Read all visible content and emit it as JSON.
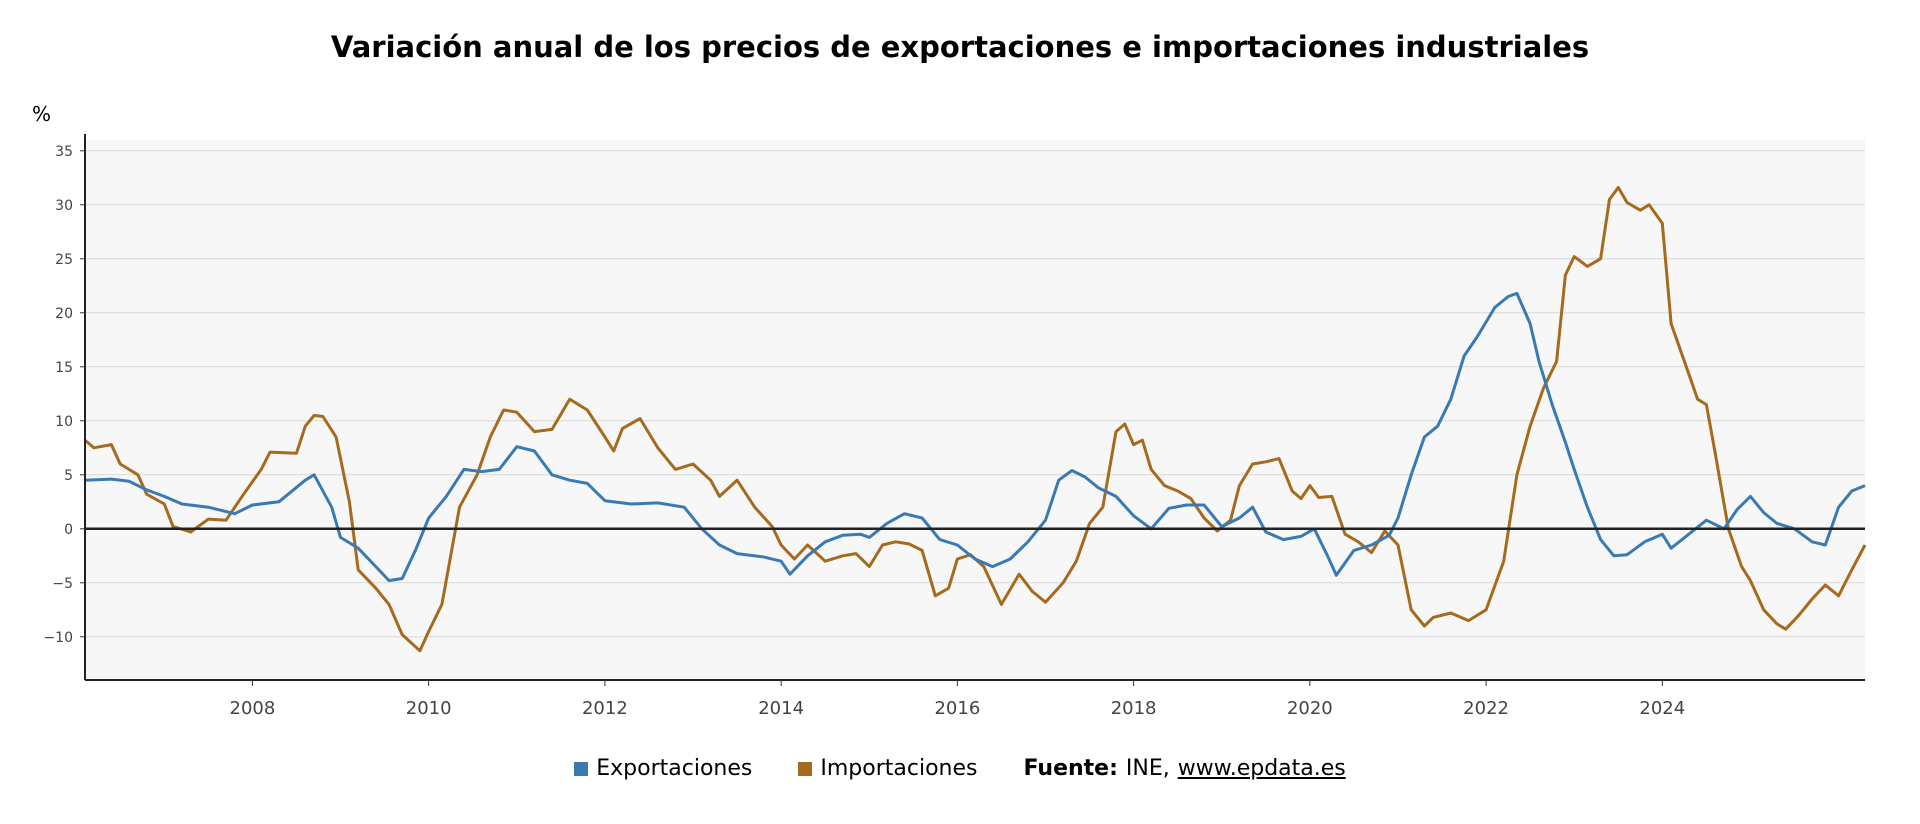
{
  "title": "Variación anual de los precios de exportaciones e importaciones industriales",
  "legend": {
    "items": [
      {
        "label": "Exportaciones",
        "color": "#3a7ab3"
      },
      {
        "label": "Importaciones",
        "color": "#a66a1e"
      }
    ],
    "source_label": "Fuente:",
    "source_name": "INE,",
    "source_link": "www.epdata.es"
  },
  "chart_data": {
    "type": "line",
    "ylabel": "%",
    "xlabel": "",
    "ylim": [
      -14,
      36
    ],
    "yticks": [
      35,
      30,
      25,
      20,
      15,
      10,
      5,
      0,
      -5,
      -10
    ],
    "xticks": [
      "2008",
      "2010",
      "2012",
      "2014",
      "2016",
      "2018",
      "2020",
      "2022",
      "2024"
    ],
    "xlim": [
      2006.1,
      2026.3
    ],
    "grid": true,
    "legend_position": "bottom",
    "series": [
      {
        "name": "Exportaciones",
        "color": "#3a7ab3",
        "points": [
          [
            2006.1,
            4.5
          ],
          [
            2006.4,
            4.6
          ],
          [
            2006.6,
            4.4
          ],
          [
            2006.8,
            3.6
          ],
          [
            2007.0,
            3.0
          ],
          [
            2007.2,
            2.3
          ],
          [
            2007.5,
            2.0
          ],
          [
            2007.8,
            1.4
          ],
          [
            2008.0,
            2.2
          ],
          [
            2008.3,
            2.5
          ],
          [
            2008.6,
            4.5
          ],
          [
            2008.7,
            5.0
          ],
          [
            2008.9,
            2.0
          ],
          [
            2009.0,
            -0.8
          ],
          [
            2009.2,
            -1.8
          ],
          [
            2009.4,
            -3.5
          ],
          [
            2009.55,
            -4.8
          ],
          [
            2009.7,
            -4.6
          ],
          [
            2009.85,
            -2.0
          ],
          [
            2010.0,
            1.0
          ],
          [
            2010.2,
            3.0
          ],
          [
            2010.4,
            5.5
          ],
          [
            2010.6,
            5.3
          ],
          [
            2010.8,
            5.5
          ],
          [
            2011.0,
            7.6
          ],
          [
            2011.2,
            7.2
          ],
          [
            2011.4,
            5.0
          ],
          [
            2011.6,
            4.5
          ],
          [
            2011.8,
            4.2
          ],
          [
            2012.0,
            2.6
          ],
          [
            2012.3,
            2.3
          ],
          [
            2012.6,
            2.4
          ],
          [
            2012.9,
            2.0
          ],
          [
            2013.1,
            0.0
          ],
          [
            2013.3,
            -1.5
          ],
          [
            2013.5,
            -2.3
          ],
          [
            2013.8,
            -2.6
          ],
          [
            2014.0,
            -3.0
          ],
          [
            2014.1,
            -4.2
          ],
          [
            2014.3,
            -2.5
          ],
          [
            2014.5,
            -1.2
          ],
          [
            2014.7,
            -0.6
          ],
          [
            2014.9,
            -0.5
          ],
          [
            2015.0,
            -0.8
          ],
          [
            2015.2,
            0.5
          ],
          [
            2015.4,
            1.4
          ],
          [
            2015.6,
            1.0
          ],
          [
            2015.8,
            -1.0
          ],
          [
            2016.0,
            -1.5
          ],
          [
            2016.2,
            -2.8
          ],
          [
            2016.4,
            -3.5
          ],
          [
            2016.6,
            -2.8
          ],
          [
            2016.8,
            -1.2
          ],
          [
            2017.0,
            0.8
          ],
          [
            2017.15,
            4.5
          ],
          [
            2017.3,
            5.4
          ],
          [
            2017.45,
            4.8
          ],
          [
            2017.6,
            3.8
          ],
          [
            2017.8,
            3.0
          ],
          [
            2018.0,
            1.2
          ],
          [
            2018.2,
            0.0
          ],
          [
            2018.4,
            1.9
          ],
          [
            2018.6,
            2.2
          ],
          [
            2018.8,
            2.2
          ],
          [
            2019.0,
            0.2
          ],
          [
            2019.2,
            1.0
          ],
          [
            2019.35,
            2.0
          ],
          [
            2019.5,
            -0.3
          ],
          [
            2019.7,
            -1.0
          ],
          [
            2019.9,
            -0.7
          ],
          [
            2020.05,
            0.0
          ],
          [
            2020.2,
            -2.5
          ],
          [
            2020.3,
            -4.3
          ],
          [
            2020.5,
            -2.0
          ],
          [
            2020.7,
            -1.5
          ],
          [
            2020.9,
            -0.6
          ],
          [
            2021.0,
            1.0
          ],
          [
            2021.15,
            5.0
          ],
          [
            2021.3,
            8.5
          ],
          [
            2021.45,
            9.5
          ],
          [
            2021.6,
            12.0
          ],
          [
            2021.75,
            16.0
          ],
          [
            2021.9,
            17.8
          ],
          [
            2022.1,
            20.5
          ],
          [
            2022.25,
            21.5
          ],
          [
            2022.35,
            21.8
          ],
          [
            2022.5,
            19.0
          ],
          [
            2022.6,
            15.5
          ],
          [
            2022.75,
            11.5
          ],
          [
            2022.9,
            8.0
          ],
          [
            2023.0,
            5.5
          ],
          [
            2023.15,
            2.0
          ],
          [
            2023.3,
            -1.0
          ],
          [
            2023.45,
            -2.5
          ],
          [
            2023.6,
            -2.4
          ],
          [
            2023.8,
            -1.2
          ],
          [
            2024.0,
            -0.5
          ],
          [
            2024.1,
            -1.8
          ],
          [
            2024.3,
            -0.5
          ],
          [
            2024.5,
            0.8
          ],
          [
            2024.7,
            0.0
          ],
          [
            2024.85,
            1.8
          ],
          [
            2025.0,
            3.0
          ],
          [
            2025.15,
            1.5
          ],
          [
            2025.3,
            0.5
          ],
          [
            2025.5,
            0.0
          ],
          [
            2025.7,
            -1.2
          ],
          [
            2025.85,
            -1.5
          ],
          [
            2026.0,
            2.0
          ],
          [
            2026.15,
            3.5
          ],
          [
            2026.3,
            4.0
          ]
        ]
      },
      {
        "name": "Importaciones",
        "color": "#a66a1e",
        "points": [
          [
            2006.1,
            8.2
          ],
          [
            2006.2,
            7.5
          ],
          [
            2006.4,
            7.8
          ],
          [
            2006.5,
            6.0
          ],
          [
            2006.7,
            5.0
          ],
          [
            2006.8,
            3.2
          ],
          [
            2007.0,
            2.3
          ],
          [
            2007.1,
            0.2
          ],
          [
            2007.3,
            -0.3
          ],
          [
            2007.5,
            0.9
          ],
          [
            2007.7,
            0.8
          ],
          [
            2007.9,
            3.2
          ],
          [
            2008.1,
            5.5
          ],
          [
            2008.2,
            7.1
          ],
          [
            2008.5,
            7.0
          ],
          [
            2008.6,
            9.5
          ],
          [
            2008.7,
            10.5
          ],
          [
            2008.8,
            10.4
          ],
          [
            2008.95,
            8.5
          ],
          [
            2009.1,
            2.5
          ],
          [
            2009.2,
            -3.8
          ],
          [
            2009.4,
            -5.5
          ],
          [
            2009.55,
            -7.0
          ],
          [
            2009.7,
            -9.8
          ],
          [
            2009.9,
            -11.3
          ],
          [
            2010.0,
            -9.5
          ],
          [
            2010.15,
            -7.0
          ],
          [
            2010.35,
            2.0
          ],
          [
            2010.55,
            5.0
          ],
          [
            2010.7,
            8.5
          ],
          [
            2010.85,
            11.0
          ],
          [
            2011.0,
            10.8
          ],
          [
            2011.2,
            9.0
          ],
          [
            2011.4,
            9.2
          ],
          [
            2011.6,
            12.0
          ],
          [
            2011.8,
            11.0
          ],
          [
            2012.0,
            8.5
          ],
          [
            2012.1,
            7.2
          ],
          [
            2012.2,
            9.3
          ],
          [
            2012.4,
            10.2
          ],
          [
            2012.6,
            7.5
          ],
          [
            2012.8,
            5.5
          ],
          [
            2013.0,
            6.0
          ],
          [
            2013.2,
            4.5
          ],
          [
            2013.3,
            3.0
          ],
          [
            2013.5,
            4.5
          ],
          [
            2013.7,
            2.0
          ],
          [
            2013.9,
            0.2
          ],
          [
            2014.0,
            -1.5
          ],
          [
            2014.15,
            -2.8
          ],
          [
            2014.3,
            -1.5
          ],
          [
            2014.5,
            -3.0
          ],
          [
            2014.7,
            -2.5
          ],
          [
            2014.85,
            -2.3
          ],
          [
            2015.0,
            -3.5
          ],
          [
            2015.15,
            -1.5
          ],
          [
            2015.3,
            -1.2
          ],
          [
            2015.45,
            -1.4
          ],
          [
            2015.6,
            -2.0
          ],
          [
            2015.75,
            -6.2
          ],
          [
            2015.9,
            -5.5
          ],
          [
            2016.0,
            -2.8
          ],
          [
            2016.15,
            -2.4
          ],
          [
            2016.3,
            -3.5
          ],
          [
            2016.5,
            -7.0
          ],
          [
            2016.7,
            -4.2
          ],
          [
            2016.85,
            -5.8
          ],
          [
            2017.0,
            -6.8
          ],
          [
            2017.2,
            -5.0
          ],
          [
            2017.35,
            -3.0
          ],
          [
            2017.5,
            0.5
          ],
          [
            2017.65,
            2.0
          ],
          [
            2017.8,
            9.0
          ],
          [
            2017.9,
            9.7
          ],
          [
            2018.0,
            7.8
          ],
          [
            2018.1,
            8.2
          ],
          [
            2018.2,
            5.5
          ],
          [
            2018.35,
            4.0
          ],
          [
            2018.5,
            3.5
          ],
          [
            2018.65,
            2.8
          ],
          [
            2018.8,
            1.0
          ],
          [
            2018.95,
            -0.2
          ],
          [
            2019.1,
            0.8
          ],
          [
            2019.2,
            4.0
          ],
          [
            2019.35,
            6.0
          ],
          [
            2019.5,
            6.2
          ],
          [
            2019.65,
            6.5
          ],
          [
            2019.8,
            3.5
          ],
          [
            2019.9,
            2.8
          ],
          [
            2020.0,
            4.0
          ],
          [
            2020.1,
            2.9
          ],
          [
            2020.25,
            3.0
          ],
          [
            2020.4,
            -0.5
          ],
          [
            2020.55,
            -1.2
          ],
          [
            2020.7,
            -2.2
          ],
          [
            2020.85,
            -0.2
          ],
          [
            2021.0,
            -1.5
          ],
          [
            2021.15,
            -7.5
          ],
          [
            2021.3,
            -9.0
          ],
          [
            2021.4,
            -8.2
          ],
          [
            2021.6,
            -7.8
          ],
          [
            2021.8,
            -8.5
          ],
          [
            2022.0,
            -7.5
          ],
          [
            2022.2,
            -3.0
          ],
          [
            2022.35,
            5.0
          ],
          [
            2022.5,
            9.5
          ],
          [
            2022.65,
            13.0
          ],
          [
            2022.8,
            15.5
          ],
          [
            2022.9,
            23.5
          ],
          [
            2023.0,
            25.2
          ],
          [
            2023.15,
            24.3
          ],
          [
            2023.3,
            25.0
          ],
          [
            2023.4,
            30.5
          ],
          [
            2023.5,
            31.6
          ],
          [
            2023.6,
            30.2
          ],
          [
            2023.75,
            29.5
          ],
          [
            2023.85,
            30.0
          ],
          [
            2024.0,
            28.3
          ],
          [
            2024.1,
            19.0
          ],
          [
            2024.25,
            15.5
          ],
          [
            2024.4,
            12.0
          ],
          [
            2024.5,
            11.5
          ],
          [
            2024.6,
            7.0
          ],
          [
            2024.75,
            0.0
          ],
          [
            2024.9,
            -3.5
          ],
          [
            2025.0,
            -4.8
          ],
          [
            2025.15,
            -7.5
          ],
          [
            2025.3,
            -8.8
          ],
          [
            2025.4,
            -9.3
          ],
          [
            2025.55,
            -8.0
          ],
          [
            2025.7,
            -6.5
          ],
          [
            2025.85,
            -5.2
          ],
          [
            2026.0,
            -6.2
          ],
          [
            2026.15,
            -3.8
          ],
          [
            2026.3,
            -1.5
          ]
        ]
      }
    ]
  }
}
